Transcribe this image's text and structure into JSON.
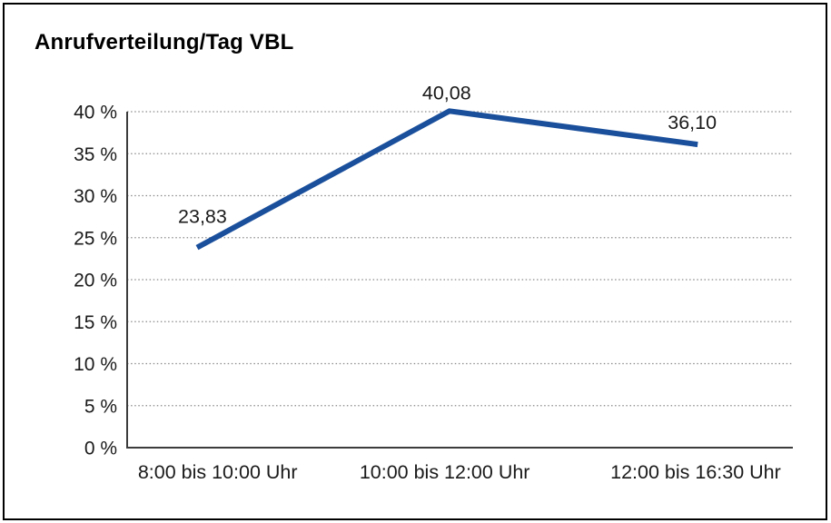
{
  "window": {
    "background": "#ffffff",
    "border_color": "#000000"
  },
  "chart_data": {
    "type": "line",
    "title": "Anrufverteilung/Tag VBL",
    "categories": [
      "8:00 bis 10:00 Uhr",
      "10:00 bis 12:00 Uhr",
      "12:00 bis 16:30 Uhr"
    ],
    "series": [
      {
        "values": [
          23.83,
          40.08,
          36.1
        ],
        "color": "#1a4f9c"
      }
    ],
    "point_labels": [
      "23,83",
      "40,08",
      "36,10"
    ],
    "xlabel": "",
    "ylabel": "",
    "ylim": [
      0,
      40
    ],
    "ytick_step": 5,
    "ytick_values": [
      0,
      5,
      10,
      15,
      20,
      25,
      30,
      35,
      40
    ],
    "ytick_labels": [
      "0 %",
      "5 %",
      "10 %",
      "15 %",
      "20 %",
      "25 %",
      "30 %",
      "35 %",
      "40 %"
    ],
    "grid": "horizontal-dotted",
    "grid_color": "#8a8a8a",
    "axis_color": "#3c3c3c",
    "text_color": "#1a1a1a",
    "legend": "none"
  }
}
